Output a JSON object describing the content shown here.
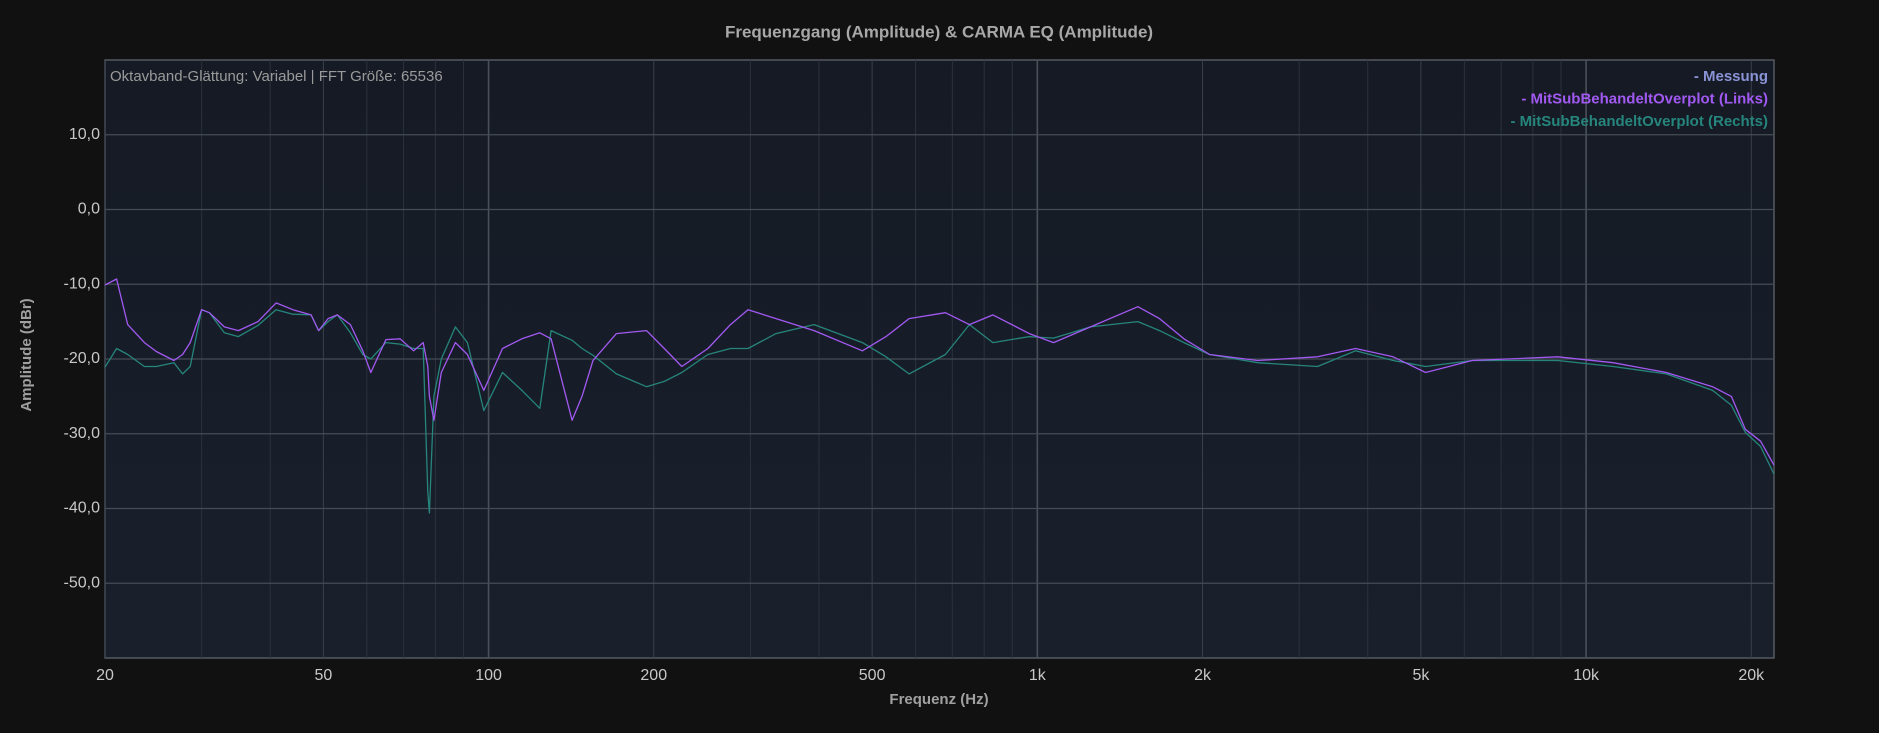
{
  "chart_data": {
    "type": "line",
    "title": "Frequenzgang (Amplitude) & CARMA EQ (Amplitude)",
    "annotation": "Oktavband-Glättung: Variabel | FFT Größe: 65536",
    "xlabel": "Frequenz (Hz)",
    "ylabel": "Amplitude (dBr)",
    "xscale": "log",
    "grid": true,
    "legend": "upper right",
    "xlim": [
      20,
      22000
    ],
    "ylim": [
      -60,
      20
    ],
    "xticks": [
      20,
      50,
      100,
      200,
      500,
      {
        "value": 1000,
        "label": "1k"
      },
      {
        "value": 2000,
        "label": "2k"
      },
      {
        "value": 5000,
        "label": "5k"
      },
      {
        "value": 10000,
        "label": "10k"
      },
      {
        "value": 20000,
        "label": "20k"
      }
    ],
    "xminorticks": [
      30,
      40,
      60,
      70,
      80,
      90,
      300,
      400,
      600,
      700,
      800,
      900,
      3000,
      4000,
      6000,
      7000,
      8000,
      9000
    ],
    "yticks": [
      {
        "value": -50,
        "label": "-50,0"
      },
      {
        "value": -40,
        "label": "-40,0"
      },
      {
        "value": -30,
        "label": "-30,0"
      },
      {
        "value": -20,
        "label": "-20,0"
      },
      {
        "value": -10,
        "label": "-10,0"
      },
      {
        "value": 0,
        "label": "0,0"
      },
      {
        "value": 10,
        "label": "10,0"
      }
    ],
    "x": [
      20,
      21,
      22,
      23.6,
      24.8,
      26.7,
      27.7,
      28.6,
      30,
      31,
      33,
      35,
      38,
      41,
      44,
      47.5,
      49,
      51,
      53,
      56,
      59,
      61,
      65,
      69,
      73,
      76,
      77.5,
      78,
      79.5,
      82,
      87,
      91.5,
      98,
      106,
      115,
      124,
      130,
      142,
      148,
      155,
      171,
      194,
      209,
      225,
      251,
      276,
      297,
      334,
      392,
      480,
      530,
      584,
      680,
      752,
      830,
      967,
      1070,
      1250,
      1525,
      1670,
      1850,
      2060,
      2520,
      3240,
      3800,
      4450,
      5100,
      6200,
      8880,
      11200,
      14000,
      17000,
      18400,
      19500,
      20800,
      22000
    ],
    "series": [
      {
        "name": "- Messung",
        "color": "#8a93d6",
        "values": [
          null,
          null,
          null,
          null,
          null,
          null,
          null,
          null,
          null,
          null,
          null,
          null,
          null,
          null,
          null,
          null,
          null,
          null,
          null,
          null,
          null,
          null,
          null,
          null,
          null,
          null,
          null,
          null,
          null,
          null,
          null,
          null,
          null,
          null,
          null,
          null,
          null,
          null,
          null,
          null,
          null,
          null,
          null,
          null,
          null,
          null,
          null,
          null,
          null,
          null,
          null,
          null,
          null,
          null,
          null,
          null,
          null,
          null,
          null,
          null,
          null,
          null,
          null,
          null,
          null,
          null,
          null,
          null,
          null,
          null,
          null,
          null,
          null,
          null,
          null,
          null
        ]
      },
      {
        "name": "- MitSubBehandeltOverplot (Links)",
        "color": "#a259f2",
        "values": [
          -10.1,
          -9.3,
          -15.4,
          -17.8,
          -19,
          -20.2,
          -19.4,
          -17.8,
          -13.4,
          -13.8,
          -15.7,
          -16.2,
          -15,
          -12.5,
          -13.4,
          -14.1,
          -16.2,
          -14.6,
          -14.1,
          -15.4,
          -18.9,
          -21.8,
          -17.4,
          -17.3,
          -18.9,
          -17.8,
          -21,
          -25,
          -28.2,
          -21.8,
          -17.8,
          -19.4,
          -24.2,
          -18.6,
          -17.3,
          -16.5,
          -17.3,
          -28.2,
          -25,
          -20.2,
          -16.6,
          -16.2,
          -18.6,
          -21,
          -18.6,
          -15.4,
          -13.4,
          -14.6,
          -16.2,
          -18.9,
          -17,
          -14.6,
          -13.8,
          -15.4,
          -14.1,
          -16.6,
          -17.8,
          -15.7,
          -13,
          -14.6,
          -17.3,
          -19.4,
          -20.2,
          -19.7,
          -18.6,
          -19.7,
          -21.8,
          -20.2,
          -19.7,
          -20.5,
          -21.8,
          -23.7,
          -25,
          -29.4,
          -31,
          -34.2
        ]
      },
      {
        "name": "- MitSubBehandeltOverplot (Rechts)",
        "color": "#26857c",
        "values": [
          -21.1,
          -18.6,
          -19.4,
          -21,
          -21,
          -20.5,
          -22,
          -21,
          -13.4,
          -13.8,
          -16.5,
          -17,
          -15.5,
          -13.4,
          -14,
          -14.1,
          -16.2,
          -15,
          -14.1,
          -16.5,
          -19.4,
          -20,
          -17.8,
          -18,
          -18.6,
          -18.6,
          -37.8,
          -40.6,
          -25,
          -20,
          -15.7,
          -17.8,
          -26.9,
          -21.8,
          -24.2,
          -26.6,
          -16.2,
          -17.5,
          -18.6,
          -19.5,
          -22,
          -23.7,
          -23,
          -21.8,
          -19.4,
          -18.6,
          -18.6,
          -16.6,
          -15.4,
          -17.8,
          -19.7,
          -22,
          -19.4,
          -15.4,
          -17.8,
          -17,
          -17.2,
          -15.7,
          -15,
          -16.2,
          -17.8,
          -19.4,
          -20.5,
          -21,
          -18.9,
          -20.2,
          -21,
          -20.2,
          -20.2,
          -21,
          -22,
          -24.2,
          -26.2,
          -29.8,
          -31.7,
          -35.4
        ]
      }
    ]
  }
}
